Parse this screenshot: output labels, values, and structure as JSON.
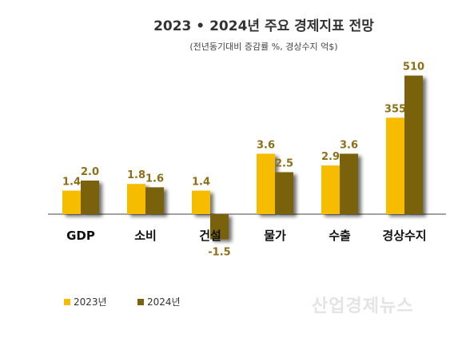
{
  "chart_data": {
    "type": "bar",
    "title": "2023 • 2024년 주요 경제지표 전망",
    "subtitle": "(전년동기대비 증감률 %, 경상수지 억$)",
    "categories": [
      "GDP",
      "소비",
      "건설",
      "물가",
      "수출",
      "경상수지"
    ],
    "series": [
      {
        "name": "2023년",
        "values": [
          1.4,
          1.8,
          1.4,
          3.6,
          2.9,
          355
        ],
        "labels": [
          "1.4",
          "1.8",
          "1.4",
          "3.6",
          "2.9",
          "355"
        ],
        "color": "#F5BC00"
      },
      {
        "name": "2024년",
        "values": [
          2.0,
          1.6,
          -1.5,
          2.5,
          3.6,
          510
        ],
        "labels": [
          "2.0",
          "1.6",
          "-1.5",
          "2.5",
          "3.6",
          "510"
        ],
        "color": "#7A6210"
      }
    ],
    "label_color": "#8C7018",
    "legend": "bottom-left",
    "grid": false
  },
  "watermark": "산업경제뉴스"
}
